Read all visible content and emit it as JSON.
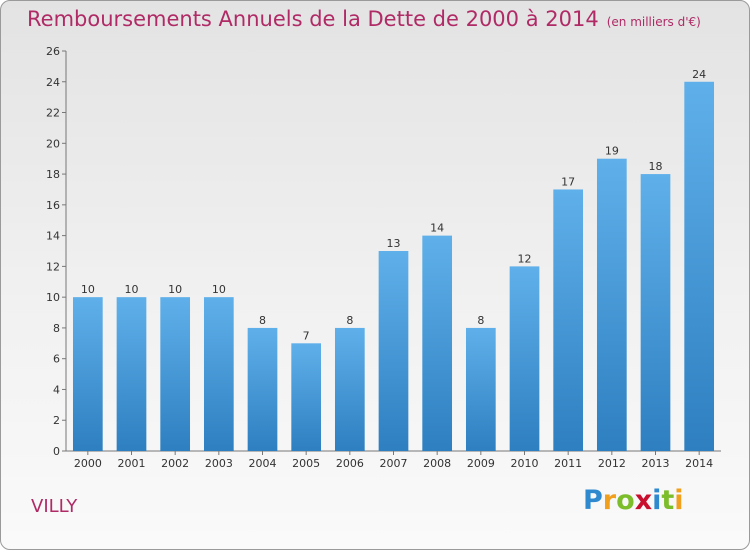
{
  "chart_data": {
    "type": "bar",
    "title": "Remboursements Annuels de la Dette de 2000 à 2014",
    "subtitle": "(en milliers d'€)",
    "categories": [
      "2000",
      "2001",
      "2002",
      "2003",
      "2004",
      "2005",
      "2006",
      "2007",
      "2008",
      "2009",
      "2010",
      "2011",
      "2012",
      "2013",
      "2014"
    ],
    "values": [
      10,
      10,
      10,
      10,
      8,
      7,
      8,
      13,
      14,
      8,
      12,
      17,
      19,
      18,
      24
    ],
    "ylim": [
      0,
      26
    ],
    "yticks": [
      0,
      2,
      4,
      6,
      8,
      10,
      12,
      14,
      16,
      18,
      20,
      22,
      24,
      26
    ],
    "xlabel": "",
    "ylabel": "",
    "grid": false,
    "bar_color": "#3a8fd4",
    "title_color": "#b02a66"
  },
  "place_name": "VILLY",
  "logo": {
    "text": "Proxiti",
    "letters": [
      {
        "ch": "P",
        "color": "#2e89cf"
      },
      {
        "ch": "r",
        "color": "#f0a01c"
      },
      {
        "ch": "o",
        "color": "#7bbd2a"
      },
      {
        "ch": "x",
        "color": "#c8102e"
      },
      {
        "ch": "i",
        "color": "#2e89cf"
      },
      {
        "ch": "t",
        "color": "#7bbd2a"
      },
      {
        "ch": "i",
        "color": "#f0a01c"
      }
    ]
  }
}
